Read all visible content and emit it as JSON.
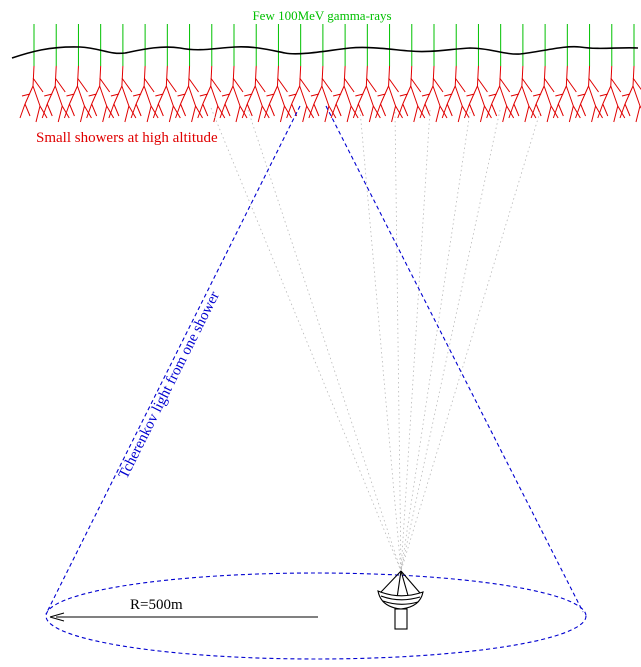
{
  "labels": {
    "top": "Few 100MeV gamma-rays",
    "showers": "Small showers at high altitude",
    "cone": "Tcherenkov light from one shower",
    "radius": "R=500m"
  },
  "colors": {
    "gamma_rays": "#00c000",
    "showers": "#e00000",
    "cone": "#0000d0",
    "faint_light": "#b8b8b8",
    "atmosphere": "#000000",
    "telescope": "#000000"
  },
  "icons": {
    "telescope": "telescope-icon"
  },
  "diagram": {
    "gamma_ray_count": 28
  }
}
